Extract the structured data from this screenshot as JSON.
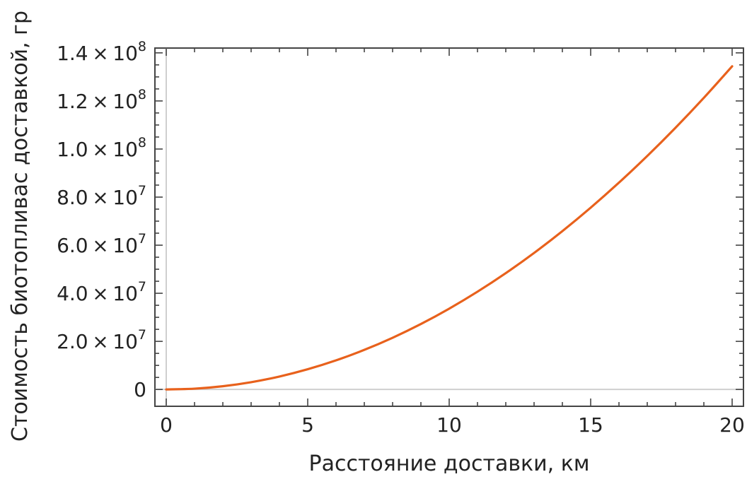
{
  "chart_data": {
    "type": "line",
    "title": "",
    "xlabel": "Расстояние доставки,  км",
    "ylabel": "Стоимость биотопливас доставкой, гр",
    "xlim": [
      -0.4,
      20.4
    ],
    "ylim": [
      -7000000,
      142000000
    ],
    "x_ticks": [
      {
        "value": 0,
        "label": "0"
      },
      {
        "value": 5,
        "label": "5"
      },
      {
        "value": 10,
        "label": "10"
      },
      {
        "value": 15,
        "label": "15"
      },
      {
        "value": 20,
        "label": "20"
      }
    ],
    "y_ticks": [
      {
        "value": 0,
        "label": "0",
        "mantissa": "",
        "exponent": ""
      },
      {
        "value": 20000000,
        "label": "2.0×10^7",
        "mantissa": "2.0 × 10",
        "exponent": "7"
      },
      {
        "value": 40000000,
        "label": "4.0×10^7",
        "mantissa": "4.0 × 10",
        "exponent": "7"
      },
      {
        "value": 60000000,
        "label": "6.0×10^7",
        "mantissa": "6.0 × 10",
        "exponent": "7"
      },
      {
        "value": 80000000,
        "label": "8.0×10^7",
        "mantissa": "8.0 × 10",
        "exponent": "7"
      },
      {
        "value": 100000000,
        "label": "1.0×10^8",
        "mantissa": "1.0 × 10",
        "exponent": "8"
      },
      {
        "value": 120000000,
        "label": "1.2×10^8",
        "mantissa": "1.2 × 10",
        "exponent": "8"
      },
      {
        "value": 140000000,
        "label": "1.4×10^8",
        "mantissa": "1.4 × 10",
        "exponent": "8"
      }
    ],
    "grid": false,
    "legend": "none",
    "series": [
      {
        "color": "#e8611c",
        "x": [
          0,
          1,
          2,
          3,
          4,
          5,
          6,
          7,
          8,
          9,
          10,
          11,
          12,
          13,
          14,
          15,
          16,
          17,
          18,
          19,
          20
        ],
        "y": [
          0,
          330000,
          1340000,
          3020000,
          5370000,
          8400000,
          12090000,
          16460000,
          21500000,
          27210000,
          33600000,
          40660000,
          48380000,
          56780000,
          65860000,
          75600000,
          86020000,
          97100000,
          108860000,
          121300000,
          134400000
        ]
      }
    ]
  }
}
